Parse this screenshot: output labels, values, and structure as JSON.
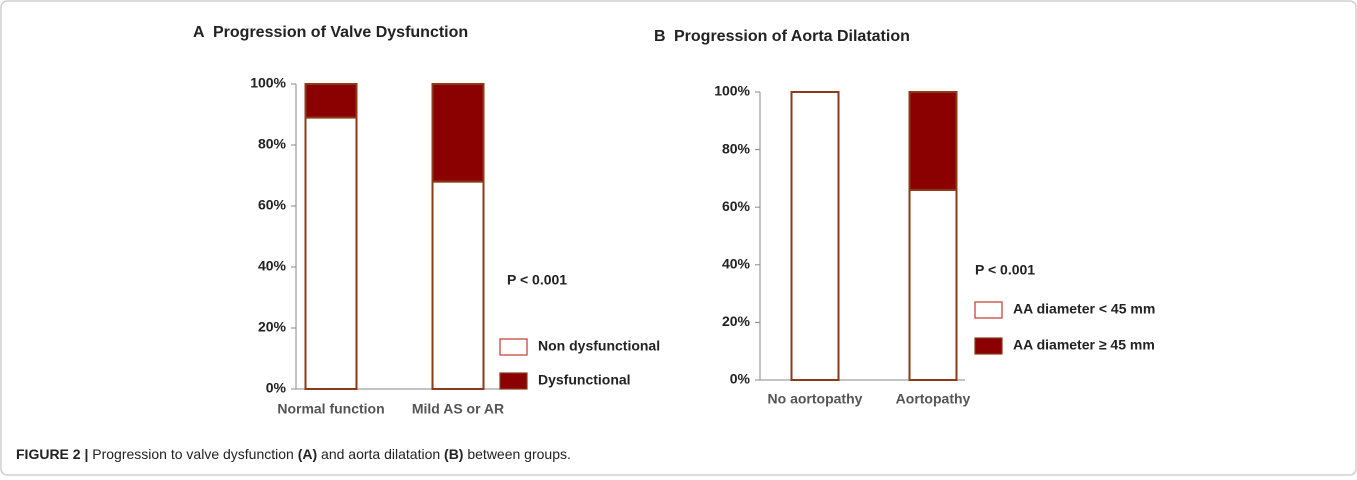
{
  "chart_data": [
    {
      "type": "bar",
      "stacked": true,
      "label": "A",
      "title": "Progression of Valve Dysfunction",
      "categories": [
        "Normal function",
        "Mild AS or AR"
      ],
      "series": [
        {
          "name": "Non dysfunctional",
          "color": "#ffffff",
          "values": [
            89,
            68
          ]
        },
        {
          "name": "Dysfunctional",
          "color": "#8b0000",
          "values": [
            11,
            32
          ]
        }
      ],
      "edgecolor": "#8b3a1a",
      "ylim": [
        0,
        100
      ],
      "yticks": [
        {
          "value": 0,
          "label": "0%"
        },
        {
          "value": 20,
          "label": "20%"
        },
        {
          "value": 40,
          "label": "40%"
        },
        {
          "value": 60,
          "label": "60%"
        },
        {
          "value": 80,
          "label": "80%"
        },
        {
          "value": 100,
          "label": "100%"
        }
      ],
      "annotation": "P < 0.001",
      "grid": false
    },
    {
      "type": "bar",
      "stacked": true,
      "label": "B",
      "title": "Progression of Aorta Dilatation",
      "categories": [
        "No aortopathy",
        "Aortopathy"
      ],
      "series": [
        {
          "name": "AA diameter < 45 mm",
          "color": "#ffffff",
          "values": [
            100,
            66
          ]
        },
        {
          "name": "AA diameter ≥ 45 mm",
          "color": "#8b0000",
          "values": [
            0,
            34
          ]
        }
      ],
      "edgecolor": "#8b3a1a",
      "ylim": [
        0,
        100
      ],
      "yticks": [
        {
          "value": 0,
          "label": "0%"
        },
        {
          "value": 20,
          "label": "20%"
        },
        {
          "value": 40,
          "label": "40%"
        },
        {
          "value": 60,
          "label": "60%"
        },
        {
          "value": 80,
          "label": "80%"
        },
        {
          "value": 100,
          "label": "100%"
        }
      ],
      "annotation": "P < 0.001",
      "grid": false
    }
  ],
  "caption": [
    "FIGURE 2 |",
    " Progression to valve dysfunction ",
    "(A)",
    " and aorta dilatation ",
    "(B)",
    " between groups."
  ]
}
